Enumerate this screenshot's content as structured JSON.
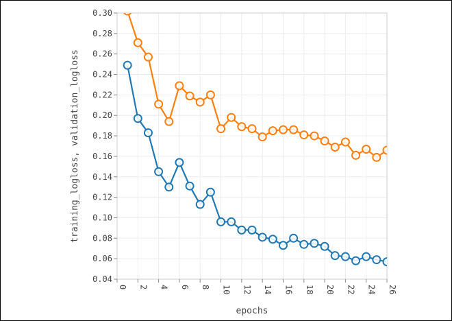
{
  "chart_data": {
    "type": "line",
    "title": "",
    "xlabel": "epochs",
    "ylabel": "training_logloss, validation_logloss",
    "xlim": [
      0,
      26
    ],
    "ylim": [
      0.04,
      0.3
    ],
    "xticks": [
      0,
      2,
      4,
      6,
      8,
      10,
      12,
      14,
      16,
      18,
      20,
      22,
      24,
      26
    ],
    "yticks": [
      0.04,
      0.06,
      0.08,
      0.1,
      0.12,
      0.14,
      0.16,
      0.18,
      0.2,
      0.22,
      0.24,
      0.26,
      0.28,
      0.3
    ],
    "grid": true,
    "legend": "none",
    "series": [
      {
        "color": "#1f77b4",
        "x": [
          1,
          2,
          3,
          4,
          5,
          6,
          7,
          8,
          9,
          10,
          11,
          12,
          13,
          14,
          15,
          16,
          17,
          18,
          19,
          20,
          21,
          22,
          23,
          24,
          25,
          26
        ],
        "y": [
          0.249,
          0.197,
          0.183,
          0.145,
          0.13,
          0.154,
          0.131,
          0.113,
          0.125,
          0.096,
          0.096,
          0.088,
          0.088,
          0.081,
          0.079,
          0.073,
          0.08,
          0.074,
          0.075,
          0.072,
          0.063,
          0.062,
          0.058,
          0.062,
          0.059,
          0.057
        ]
      },
      {
        "color": "#ff7f0e",
        "x": [
          1,
          2,
          3,
          4,
          5,
          6,
          7,
          8,
          9,
          10,
          11,
          12,
          13,
          14,
          15,
          16,
          17,
          18,
          19,
          20,
          21,
          22,
          23,
          24,
          25,
          26
        ],
        "y": [
          0.302,
          0.271,
          0.257,
          0.211,
          0.194,
          0.229,
          0.219,
          0.213,
          0.22,
          0.187,
          0.198,
          0.189,
          0.187,
          0.179,
          0.185,
          0.186,
          0.186,
          0.181,
          0.18,
          0.175,
          0.169,
          0.174,
          0.161,
          0.167,
          0.159,
          0.166
        ]
      }
    ]
  }
}
